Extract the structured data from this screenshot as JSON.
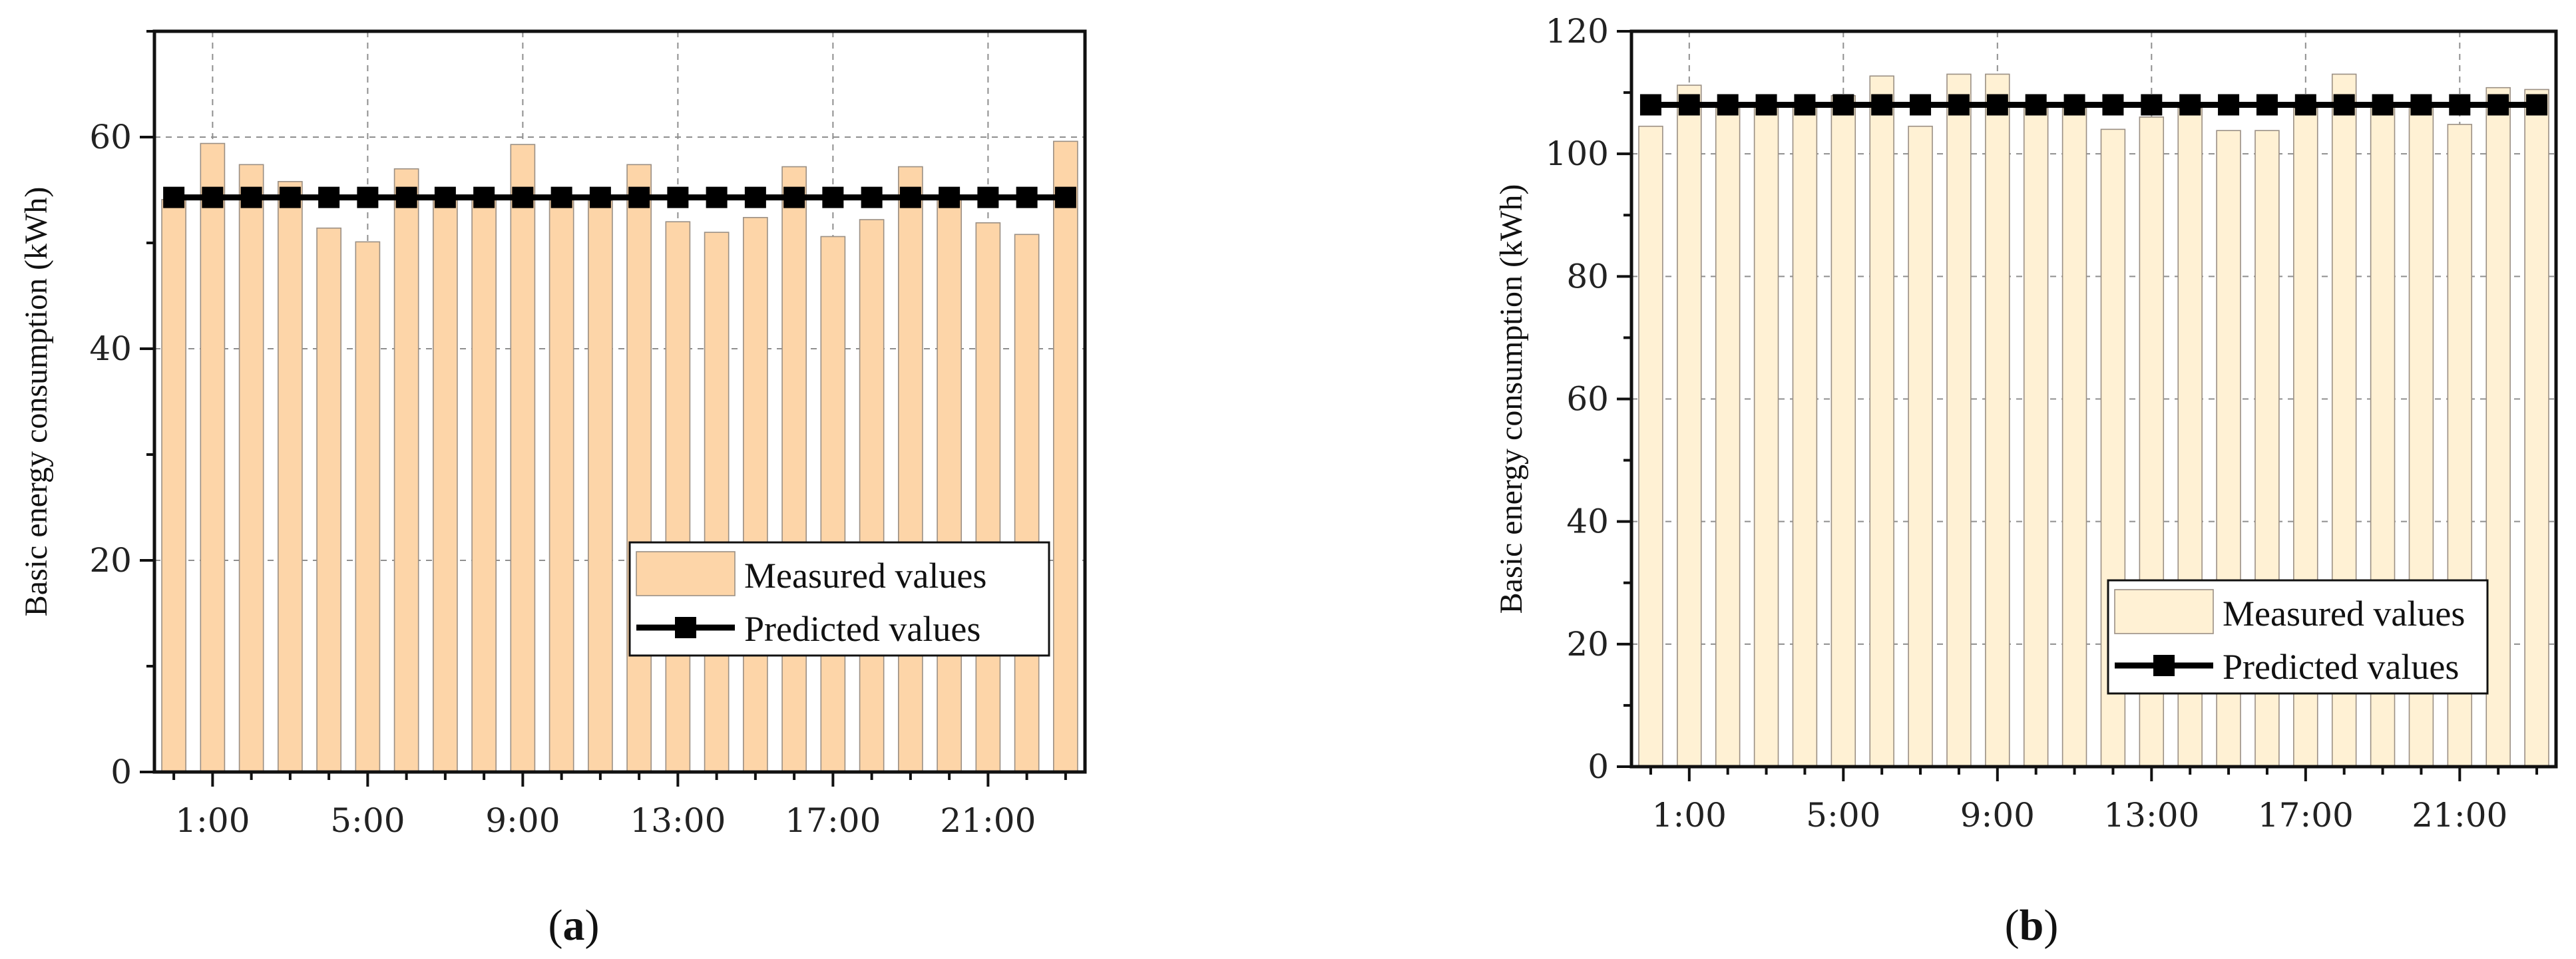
{
  "figure": {
    "panels": [
      "a",
      "b"
    ]
  },
  "chart_data": [
    {
      "panel_label": "a",
      "type": "bar",
      "categories": [
        "0:00",
        "1:00",
        "2:00",
        "3:00",
        "4:00",
        "5:00",
        "6:00",
        "7:00",
        "8:00",
        "9:00",
        "10:00",
        "11:00",
        "12:00",
        "13:00",
        "14:00",
        "15:00",
        "16:00",
        "17:00",
        "18:00",
        "19:00",
        "20:00",
        "21:00",
        "22:00",
        "23:00"
      ],
      "x_tick_labels": [
        "1:00",
        "5:00",
        "9:00",
        "13:00",
        "17:00",
        "21:00"
      ],
      "x_tick_indices": [
        1,
        5,
        9,
        13,
        17,
        21
      ],
      "series": [
        {
          "name": "Measured values",
          "kind": "bar",
          "color": "#fdd5a8",
          "values": [
            54.1,
            59.4,
            57.4,
            55.8,
            51.4,
            50.1,
            57.0,
            54.3,
            54.2,
            59.3,
            54.4,
            54.0,
            57.4,
            52.0,
            51.0,
            52.4,
            57.2,
            50.6,
            52.2,
            57.2,
            54.4,
            51.9,
            50.8,
            59.6
          ]
        },
        {
          "name": "Predicted values",
          "kind": "line",
          "marker": "square",
          "color": "#000000",
          "values": [
            54.3,
            54.3,
            54.3,
            54.3,
            54.3,
            54.3,
            54.3,
            54.3,
            54.3,
            54.3,
            54.3,
            54.3,
            54.3,
            54.3,
            54.3,
            54.3,
            54.3,
            54.3,
            54.3,
            54.3,
            54.3,
            54.3,
            54.3,
            54.3
          ]
        }
      ],
      "title": "",
      "xlabel": "",
      "ylabel": "Basic energy consumption (kWh)",
      "ylim": [
        0,
        70
      ],
      "yticks": [
        0,
        20,
        40,
        60
      ],
      "legend_position": "lower-right",
      "grid": true
    },
    {
      "panel_label": "b",
      "type": "bar",
      "categories": [
        "0:00",
        "1:00",
        "2:00",
        "3:00",
        "4:00",
        "5:00",
        "6:00",
        "7:00",
        "8:00",
        "9:00",
        "10:00",
        "11:00",
        "12:00",
        "13:00",
        "14:00",
        "15:00",
        "16:00",
        "17:00",
        "18:00",
        "19:00",
        "20:00",
        "21:00",
        "22:00",
        "23:00"
      ],
      "x_tick_labels": [
        "1:00",
        "5:00",
        "9:00",
        "13:00",
        "17:00",
        "21:00"
      ],
      "x_tick_indices": [
        1,
        5,
        9,
        13,
        17,
        21
      ],
      "series": [
        {
          "name": "Measured values",
          "kind": "bar",
          "color": "#fff1d4",
          "values": [
            104.5,
            111.2,
            107.5,
            107.7,
            107.6,
            109.5,
            112.7,
            104.5,
            113.0,
            113.0,
            107.5,
            107.5,
            104.0,
            106.0,
            107.5,
            103.8,
            103.8,
            107.5,
            113.0,
            107.6,
            107.5,
            104.8,
            110.8,
            110.5
          ]
        },
        {
          "name": "Predicted values",
          "kind": "line",
          "marker": "square",
          "color": "#000000",
          "values": [
            108.0,
            108.0,
            108.0,
            108.0,
            108.0,
            108.0,
            108.0,
            108.0,
            108.0,
            108.0,
            108.0,
            108.0,
            108.0,
            108.0,
            108.0,
            108.0,
            108.0,
            108.0,
            108.0,
            108.0,
            108.0,
            108.0,
            108.0,
            108.0
          ]
        }
      ],
      "title": "",
      "xlabel": "",
      "ylabel": "Basic energy consumption (kWh)",
      "ylim": [
        0,
        120
      ],
      "yticks": [
        0,
        20,
        40,
        60,
        80,
        100,
        120
      ],
      "legend_position": "lower-right",
      "grid": true
    }
  ]
}
